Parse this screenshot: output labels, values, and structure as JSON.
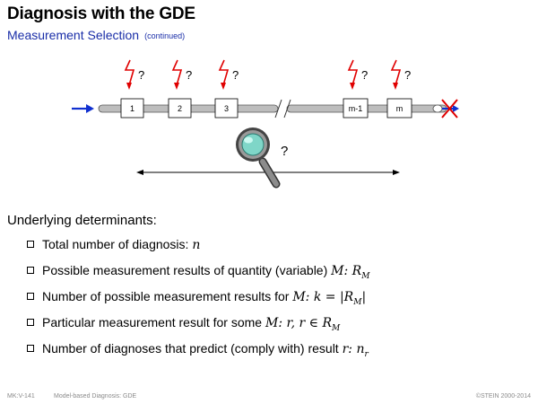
{
  "header": {
    "title": "Diagnosis with the GDE",
    "subtitle": "Measurement Selection",
    "subtitle_note": "(continued)"
  },
  "diagram": {
    "components": [
      "1",
      "2",
      "3",
      "m-1",
      "m"
    ],
    "unknown_mark": "?",
    "magnifier_question": "?",
    "colors": {
      "fault_bolt": "#e00000",
      "input_arrow": "#1030d0",
      "pipe": "#bdbdbd",
      "cross": "#e00000"
    }
  },
  "content": {
    "heading": "Underlying determinants:",
    "bullets": [
      {
        "text": "Total number of diagnosis: ",
        "math": "n"
      },
      {
        "text": "Possible measurement results of quantity (variable) ",
        "math": "M: R",
        "sub": "M"
      },
      {
        "text": "Number of possible measurement results for ",
        "math": "M: k = |R",
        "sub": "M",
        "math_tail": "|"
      },
      {
        "text": "Particular measurement result for some ",
        "math": "M: r, r ∈ R",
        "sub": "M"
      },
      {
        "text": "Number of diagnoses that predict (comply with) result ",
        "math": "r: n",
        "sub": "r"
      }
    ]
  },
  "footer": {
    "slide_id": "MK:V-141",
    "course": "Model-based Diagnosis: GDE",
    "copyright": "©STEIN 2000-2014"
  }
}
